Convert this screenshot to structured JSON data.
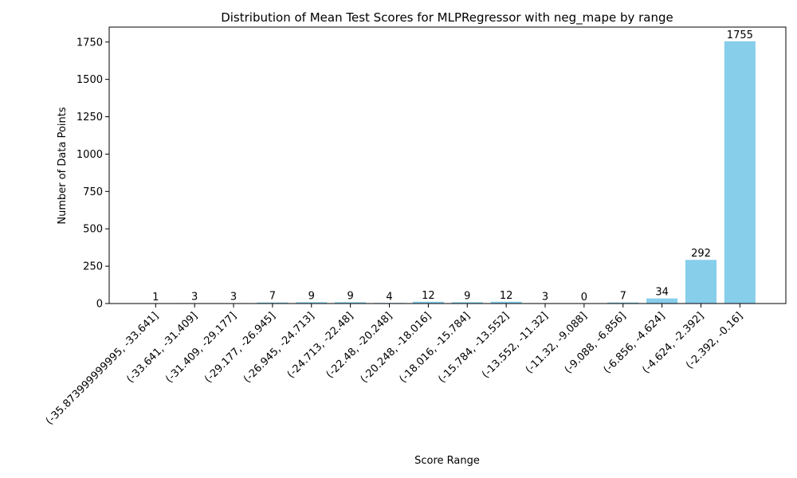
{
  "chart_data": {
    "type": "bar",
    "title": "Distribution of Mean Test Scores for MLPRegressor with neg_mape by range",
    "xlabel": "Score Range",
    "ylabel": "Number of Data Points",
    "categories": [
      "(-35.873999999995, -33.641]",
      "(-33.641, -31.409]",
      "(-31.409, -29.177]",
      "(-29.177, -26.945]",
      "(-26.945, -24.713]",
      "(-24.713, -22.48]",
      "(-22.48, -20.248]",
      "(-20.248, -18.016]",
      "(-18.016, -15.784]",
      "(-15.784, -13.552]",
      "(-13.552, -11.32]",
      "(-11.32, -9.088]",
      "(-9.088, -6.856]",
      "(-6.856, -4.624]",
      "(-4.624, -2.392]",
      "(-2.392, -0.16]"
    ],
    "values": [
      1,
      3,
      3,
      7,
      9,
      9,
      4,
      12,
      9,
      12,
      3,
      0,
      7,
      34,
      292,
      1755
    ],
    "ylim": [
      0,
      1850
    ],
    "yticks": [
      0,
      250,
      500,
      750,
      1000,
      1250,
      1500,
      1750
    ],
    "bar_color": "#87ceeb",
    "grid": false,
    "legend": "none"
  }
}
